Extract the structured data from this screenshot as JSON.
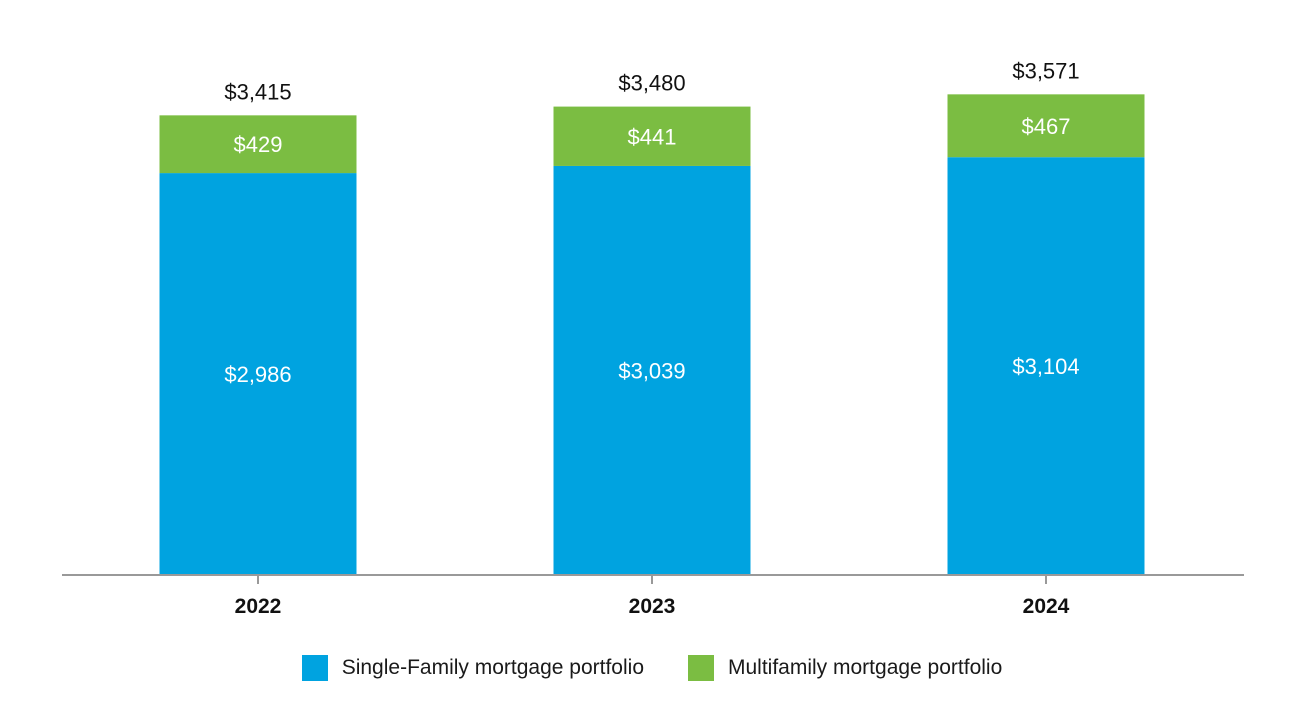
{
  "chart_data": {
    "type": "bar",
    "stacked": true,
    "categories": [
      "2022",
      "2023",
      "2024"
    ],
    "series": [
      {
        "name": "Single-Family mortgage portfolio",
        "color": "#00A3E0",
        "values": [
          2986,
          3039,
          3104
        ],
        "labels": [
          "$2,986",
          "$3,039",
          "$3,104"
        ]
      },
      {
        "name": "Multifamily mortgage portfolio",
        "color": "#7BBD42",
        "values": [
          429,
          441,
          467
        ],
        "labels": [
          "$429",
          "$441",
          "$467"
        ]
      }
    ],
    "totals": [
      3415,
      3480,
      3571
    ],
    "total_labels": [
      "$3,415",
      "$3,480",
      "$3,571"
    ],
    "ylim": [
      0,
      4000
    ],
    "grid": false,
    "legend_position": "bottom"
  }
}
